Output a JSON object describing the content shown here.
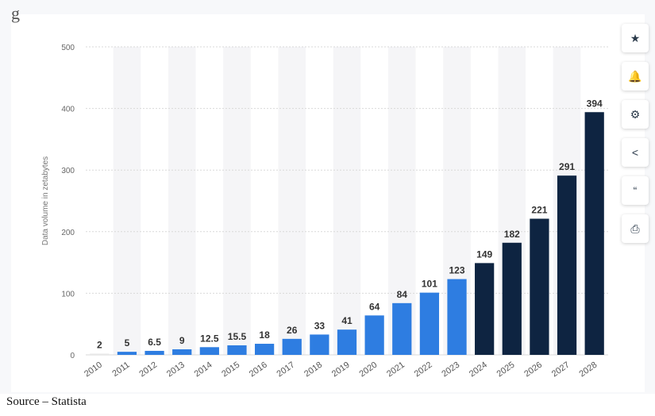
{
  "chart_data": {
    "type": "bar",
    "categories": [
      "2010",
      "2011",
      "2012",
      "2013",
      "2014",
      "2015",
      "2016",
      "2017",
      "2018",
      "2019",
      "2020",
      "2021",
      "2022",
      "2023",
      "2024",
      "2025",
      "2026",
      "2027",
      "2028"
    ],
    "values": [
      2,
      5,
      6.5,
      9,
      12.5,
      15.5,
      18,
      26,
      33,
      41,
      64,
      84,
      101,
      123,
      149,
      182,
      221,
      291,
      394
    ],
    "labels": [
      "2",
      "5",
      "6.5",
      "9",
      "12.5",
      "15.5",
      "18",
      "26",
      "33",
      "41",
      "64",
      "84",
      "101",
      "123",
      "149",
      "182",
      "221",
      "291",
      "394"
    ],
    "ylabel": "Data volume in zetabytes",
    "ylim": [
      0,
      500
    ],
    "yticks": [
      "0",
      "100",
      "200",
      "300",
      "400",
      "500"
    ],
    "grid": true,
    "colors": {
      "actual": "#2e7de1",
      "forecast": "#0e2441",
      "first_bar": "#e8e8e8"
    },
    "forecast_start_index": 14
  },
  "toolbar": {
    "buttons": [
      {
        "name": "favorite-icon",
        "glyph": "★"
      },
      {
        "name": "bell-icon",
        "glyph": "🔔"
      },
      {
        "name": "gear-icon",
        "glyph": "⚙"
      },
      {
        "name": "share-icon",
        "glyph": "<"
      },
      {
        "name": "quote-icon",
        "glyph": "“"
      },
      {
        "name": "print-icon",
        "glyph": "⎙"
      }
    ]
  },
  "source_text": "Source – Statista"
}
